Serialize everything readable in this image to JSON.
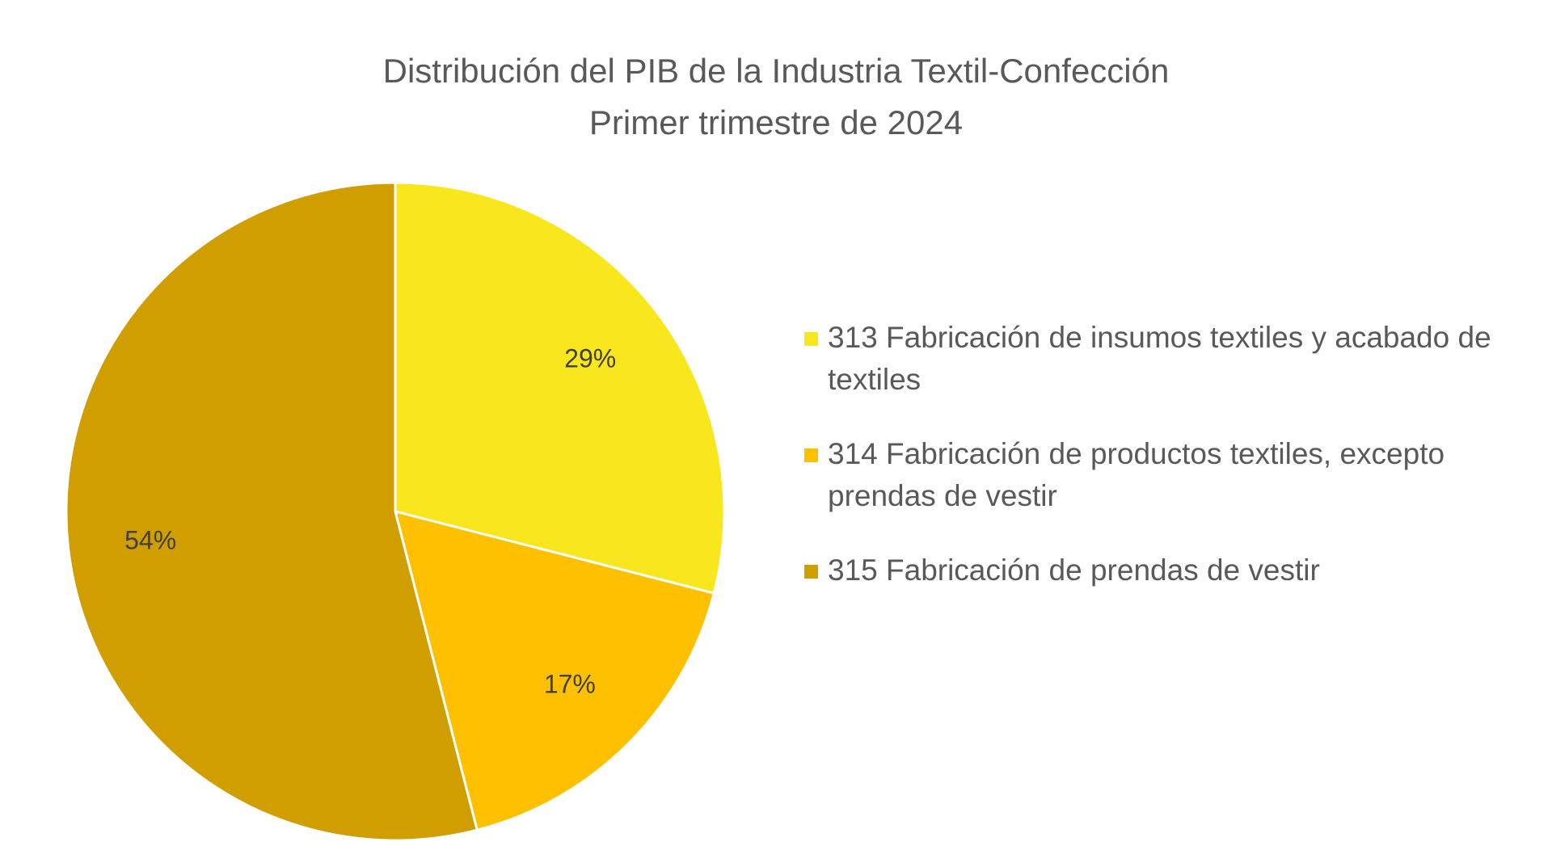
{
  "chart_data": {
    "type": "pie",
    "title": "Distribución del PIB de la Industria Textil-Confección",
    "subtitle": "Primer trimestre de 2024",
    "categories": [
      "313 Fabricación de insumos textiles y acabado de textiles",
      " 314 Fabricación de productos textiles, excepto prendas de vestir",
      " 315 Fabricación de prendas de vestir"
    ],
    "values": [
      29,
      17,
      54
    ],
    "data_labels": [
      "29%",
      "17%",
      "54%"
    ],
    "colors": [
      "#F9E71E",
      "#FFC000",
      "#D19E00"
    ],
    "start_angle_deg": 0,
    "direction": "clockwise",
    "legend_position": "right"
  }
}
